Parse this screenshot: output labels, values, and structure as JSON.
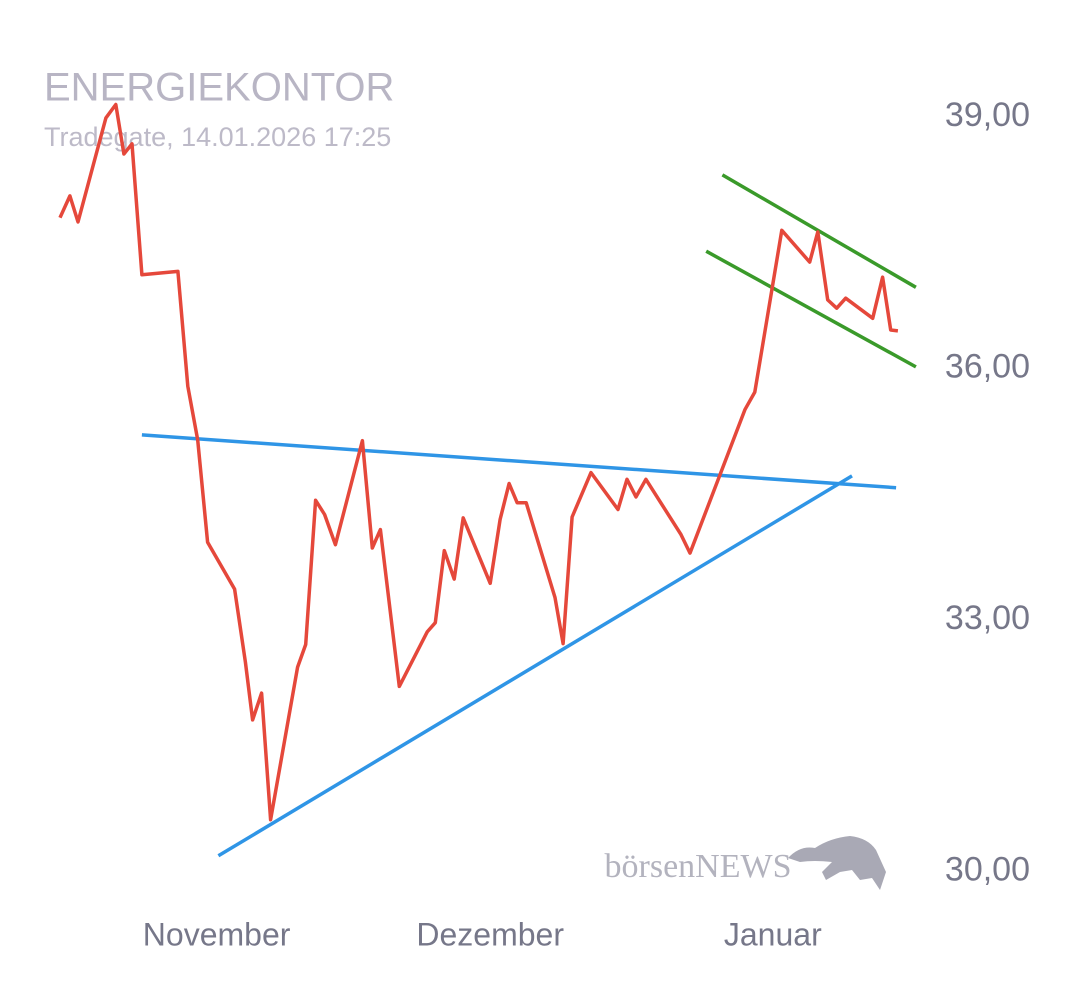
{
  "chart_data": {
    "type": "line",
    "title": "ENERGIEKONTOR",
    "subtitle": "Tradegate, 14.01.2026 17:25",
    "watermark": "börsenNEWS",
    "color": "#e5483b",
    "x": [
      0,
      1.1,
      2,
      5.1,
      6.2,
      7.1,
      8,
      9.1,
      13.1,
      14.2,
      15.3,
      16.4,
      19.4,
      20.6,
      21.4,
      22.4,
      23.4,
      26.4,
      27.3,
      28.4,
      29.4,
      30.6,
      33.6,
      34.7,
      35.6,
      37.7,
      40.8,
      41.7,
      42.7,
      43.8,
      44.8,
      47.8,
      48.9,
      49.9,
      50.8,
      51.8,
      55,
      55.9,
      56.9,
      59,
      62,
      63,
      64,
      65.1,
      69,
      70,
      76.1,
      77.2,
      80.2,
      83.3,
      84.2,
      85.3,
      86.3,
      87.3,
      90.3,
      91.4,
      92.3,
      93.1
    ],
    "values": [
      37.8,
      38.06,
      37.75,
      38.99,
      39.15,
      38.56,
      38.68,
      37.12,
      37.16,
      35.79,
      35.15,
      33.93,
      33.37,
      32.5,
      31.81,
      32.13,
      30.62,
      32.44,
      32.71,
      34.43,
      34.26,
      33.9,
      35.14,
      33.86,
      34.08,
      32.21,
      32.86,
      32.97,
      33.83,
      33.49,
      34.22,
      33.44,
      34.2,
      34.63,
      34.4,
      34.4,
      33.27,
      32.72,
      34.23,
      34.76,
      34.32,
      34.68,
      34.47,
      34.68,
      34.02,
      33.8,
      35.51,
      35.72,
      37.65,
      37.27,
      37.63,
      36.82,
      36.72,
      36.84,
      36.6,
      37.09,
      36.46,
      36.45
    ],
    "trendlines": [
      {
        "color": "#2f95e6",
        "x": [
          9.1,
          92.9
        ],
        "values": [
          35.21,
          34.58
        ]
      },
      {
        "color": "#2f95e6",
        "x": [
          17.6,
          88
        ],
        "values": [
          30.19,
          34.72
        ]
      },
      {
        "color": "#3a9a2a",
        "x": [
          73.6,
          95.1
        ],
        "values": [
          38.31,
          36.97
        ]
      },
      {
        "color": "#3a9a2a",
        "x": [
          71.8,
          95.1
        ],
        "values": [
          37.4,
          36.02
        ]
      }
    ],
    "xlim": [
      0,
      96
    ],
    "xticks": [
      {
        "value": 17.4,
        "label": "November"
      },
      {
        "value": 47.8,
        "label": "Dezember"
      },
      {
        "value": 79.2,
        "label": "Januar"
      }
    ],
    "ylim": [
      29.4,
      39.8
    ],
    "yticks": [
      {
        "value": 30,
        "label": "30,00"
      },
      {
        "value": 33,
        "label": "33,00"
      },
      {
        "value": 36,
        "label": "36,00"
      },
      {
        "value": 39,
        "label": "39,00"
      }
    ],
    "grid": false
  }
}
